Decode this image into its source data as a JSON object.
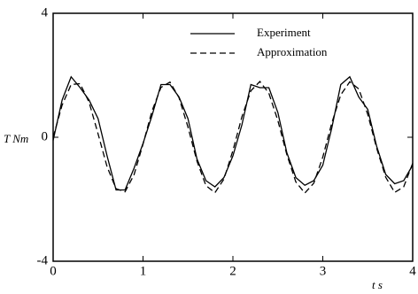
{
  "chart_data": {
    "type": "line",
    "xlabel": "t s",
    "ylabel": "T Nm",
    "x": [
      0,
      0.1,
      0.2,
      0.3,
      0.4,
      0.5,
      0.6,
      0.7,
      0.8,
      0.9,
      1.0,
      1.1,
      1.2,
      1.3,
      1.4,
      1.5,
      1.6,
      1.7,
      1.8,
      1.9,
      2.0,
      2.1,
      2.2,
      2.3,
      2.4,
      2.5,
      2.6,
      2.7,
      2.8,
      2.9,
      3.0,
      3.1,
      3.2,
      3.3,
      3.4,
      3.5,
      3.6,
      3.7,
      3.8,
      3.9,
      4.0
    ],
    "series": [
      {
        "name": "Experiment",
        "color": "#000000",
        "dashed": false,
        "values": [
          -0.1,
          1.2,
          1.95,
          1.6,
          1.2,
          0.6,
          -0.6,
          -1.7,
          -1.7,
          -1.0,
          -0.2,
          0.7,
          1.7,
          1.7,
          1.3,
          0.6,
          -0.7,
          -1.4,
          -1.6,
          -1.3,
          -0.6,
          0.4,
          1.7,
          1.6,
          1.6,
          0.8,
          -0.5,
          -1.3,
          -1.55,
          -1.4,
          -0.9,
          0.3,
          1.7,
          1.95,
          1.3,
          0.9,
          -0.3,
          -1.2,
          -1.5,
          -1.4,
          -0.9
        ]
      },
      {
        "name": "Approximation",
        "color": "#000000",
        "dashed": true,
        "values": [
          0,
          1.04,
          1.7,
          1.73,
          1.13,
          0.11,
          -0.95,
          -1.66,
          -1.76,
          -1.21,
          -0.22,
          0.85,
          1.61,
          1.78,
          1.28,
          0.33,
          -0.77,
          -1.56,
          -1.79,
          -1.35,
          -0.43,
          0.66,
          1.5,
          1.8,
          1.42,
          0.54,
          -0.56,
          -1.44,
          -1.8,
          -1.48,
          -0.64,
          0.46,
          1.37,
          1.79,
          1.56,
          0.74,
          -0.36,
          -1.29,
          -1.78,
          -1.6,
          -0.84
        ]
      }
    ],
    "xlim": [
      0,
      4
    ],
    "ylim": [
      -4,
      4
    ],
    "xticks": [
      0,
      1,
      2,
      3,
      4
    ],
    "yticks": [
      -4,
      0,
      4
    ],
    "grid": false,
    "legend": "upper right"
  }
}
